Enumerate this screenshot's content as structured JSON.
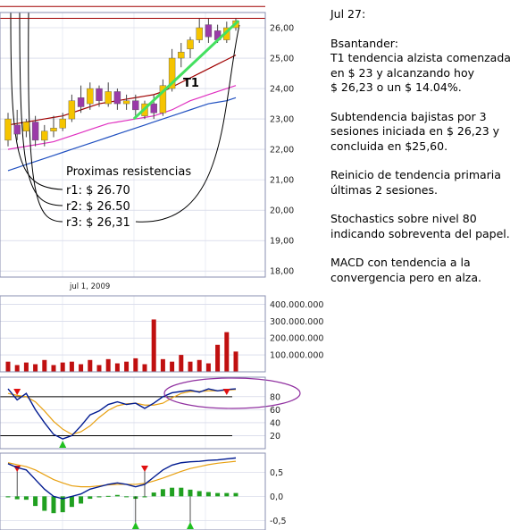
{
  "commentary": {
    "date": "Jul 27:",
    "p1": "Bsantander:\nT1 tendencia alzista comenzada en $ 23 y alcanzando hoy\n $ 26,23 o un $ 14.04%.",
    "p2": "Subtendencia bajistas por 3 sesiones iniciada en $ 26,23 y concluida en $25,60.",
    "p3": "Reinicio de tendencia primaria últimas 2 sesiones.",
    "p4": "Stochastics sobre nivel 80 indicando sobreventa del papel.",
    "p5": "MACD con tendencia a la convergencia pero en alza."
  },
  "annotations": {
    "resist_title": "Proximas resistencias",
    "r1": "r1: $ 26.70",
    "r2": "r2: $ 26.50",
    "r3": "r3: $ 26,31",
    "trend_label": "T1"
  },
  "colors": {
    "up_candle": "#f5c400",
    "down_candle": "#9a3aa8",
    "trend_line": "#44e060",
    "volume_bar": "#c01010",
    "ma_dark_red": "#a00000",
    "ma_magenta": "#e030c0",
    "ma_blue": "#2050c0",
    "stoch_k": "#001a90",
    "stoch_d": "#e8a010",
    "macd_line": "#001a90",
    "macd_signal": "#e8a010",
    "macd_hist": "#20a020",
    "marker_red": "#e01010",
    "marker_green": "#20c020",
    "ellipse": "#9030a0"
  },
  "chart_data": [
    {
      "type": "candlestick",
      "name": "price",
      "ylim": [
        17.8,
        26.5
      ],
      "yticks": [
        "26,00",
        "25,00",
        "24,00",
        "23,00",
        "22,00",
        "21,00",
        "20,00",
        "19,00",
        "18,00"
      ],
      "ytick_values": [
        26,
        25,
        24,
        23,
        22,
        21,
        20,
        19,
        18
      ],
      "xlabel_tick": "jul 1, 2009",
      "candles": [
        {
          "o": 22.3,
          "c": 23.0,
          "h": 23.2,
          "l": 22.1
        },
        {
          "o": 22.8,
          "c": 22.5,
          "h": 23.3,
          "l": 22.3
        },
        {
          "o": 22.6,
          "c": 22.9,
          "h": 23.0,
          "l": 22.4
        },
        {
          "o": 22.9,
          "c": 22.3,
          "h": 23.1,
          "l": 22.1
        },
        {
          "o": 22.3,
          "c": 22.6,
          "h": 22.8,
          "l": 22.1
        },
        {
          "o": 22.6,
          "c": 22.7,
          "h": 23.1,
          "l": 22.4
        },
        {
          "o": 22.7,
          "c": 23.0,
          "h": 23.2,
          "l": 22.6
        },
        {
          "o": 23.0,
          "c": 23.6,
          "h": 23.8,
          "l": 22.9
        },
        {
          "o": 23.7,
          "c": 23.4,
          "h": 24.1,
          "l": 23.2
        },
        {
          "o": 23.5,
          "c": 24.0,
          "h": 24.2,
          "l": 23.3
        },
        {
          "o": 24.0,
          "c": 23.6,
          "h": 24.1,
          "l": 23.4
        },
        {
          "o": 23.5,
          "c": 23.9,
          "h": 24.2,
          "l": 23.4
        },
        {
          "o": 23.9,
          "c": 23.5,
          "h": 24.0,
          "l": 23.3
        },
        {
          "o": 23.5,
          "c": 23.6,
          "h": 23.8,
          "l": 23.3
        },
        {
          "o": 23.6,
          "c": 23.3,
          "h": 23.8,
          "l": 23.1
        },
        {
          "o": 23.1,
          "c": 23.5,
          "h": 23.6,
          "l": 23.0
        },
        {
          "o": 23.5,
          "c": 23.2,
          "h": 23.8,
          "l": 23.0
        },
        {
          "o": 23.2,
          "c": 24.1,
          "h": 24.3,
          "l": 23.1
        },
        {
          "o": 24.0,
          "c": 25.0,
          "h": 25.3,
          "l": 23.9
        },
        {
          "o": 25.0,
          "c": 25.2,
          "h": 25.5,
          "l": 24.7
        },
        {
          "o": 25.3,
          "c": 25.6,
          "h": 25.7,
          "l": 25.0
        },
        {
          "o": 25.6,
          "c": 26.0,
          "h": 26.3,
          "l": 25.5
        },
        {
          "o": 26.1,
          "c": 25.7,
          "h": 26.3,
          "l": 25.5
        },
        {
          "o": 25.9,
          "c": 25.6,
          "h": 26.1,
          "l": 25.5
        },
        {
          "o": 25.6,
          "c": 26.0,
          "h": 26.2,
          "l": 25.5
        },
        {
          "o": 26.0,
          "c": 26.23,
          "h": 26.3,
          "l": 25.9
        }
      ],
      "resistance_lines": [
        26.31,
        26.5,
        26.7
      ],
      "trend_line": {
        "from_index": 14,
        "from_value": 23.0,
        "to_index": 25,
        "to_value": 26.23
      },
      "ma_dark_red": [
        22.8,
        22.85,
        22.9,
        22.95,
        23.0,
        23.05,
        23.1,
        23.2,
        23.3,
        23.4,
        23.5,
        23.55,
        23.6,
        23.65,
        23.7,
        23.75,
        23.8,
        23.9,
        24.05,
        24.2,
        24.35,
        24.5,
        24.65,
        24.8,
        24.95,
        25.1
      ],
      "ma_magenta": [
        22.0,
        22.05,
        22.1,
        22.15,
        22.2,
        22.25,
        22.35,
        22.45,
        22.55,
        22.65,
        22.75,
        22.85,
        22.9,
        22.95,
        23.0,
        23.05,
        23.1,
        23.2,
        23.3,
        23.45,
        23.6,
        23.7,
        23.8,
        23.9,
        24.0,
        24.1
      ],
      "ma_blue": [
        21.3,
        21.4,
        21.5,
        21.6,
        21.7,
        21.8,
        21.9,
        22.0,
        22.1,
        22.2,
        22.3,
        22.4,
        22.5,
        22.6,
        22.7,
        22.8,
        22.9,
        23.0,
        23.1,
        23.2,
        23.3,
        23.4,
        23.5,
        23.55,
        23.6,
        23.7
      ]
    },
    {
      "type": "bar",
      "name": "volume",
      "ylim": [
        0,
        450000000
      ],
      "yticks": [
        "400.000.000",
        "300.000.000",
        "200.000.000",
        "100.000.000"
      ],
      "ytick_values": [
        400000000,
        300000000,
        200000000,
        100000000
      ],
      "values": [
        60000000,
        40000000,
        55000000,
        45000000,
        70000000,
        40000000,
        55000000,
        60000000,
        45000000,
        70000000,
        40000000,
        75000000,
        50000000,
        60000000,
        80000000,
        45000000,
        310000000,
        75000000,
        60000000,
        100000000,
        60000000,
        70000000,
        50000000,
        160000000,
        235000000,
        120000000
      ]
    },
    {
      "type": "line",
      "name": "stochastics",
      "ylim": [
        0,
        110
      ],
      "yticks": [
        "80",
        "60",
        "40",
        "20"
      ],
      "ytick_values": [
        80,
        60,
        40,
        20
      ],
      "reference_lines": [
        80,
        20
      ],
      "k": [
        92,
        75,
        85,
        60,
        40,
        22,
        15,
        20,
        35,
        52,
        58,
        68,
        72,
        68,
        70,
        62,
        70,
        80,
        86,
        88,
        90,
        87,
        92,
        89,
        91,
        92
      ],
      "d": [
        85,
        82,
        80,
        72,
        58,
        42,
        30,
        22,
        26,
        35,
        48,
        59,
        66,
        69,
        70,
        67,
        67,
        70,
        78,
        85,
        88,
        88,
        89,
        89,
        90,
        91
      ],
      "sell_markers": [
        1,
        24
      ],
      "buy_markers": [
        6
      ]
    },
    {
      "type": "line",
      "name": "macd",
      "ylim": [
        -0.7,
        0.9
      ],
      "yticks": [
        "0,5",
        "0,0",
        "-0,5"
      ],
      "ytick_values": [
        0.5,
        0.0,
        -0.5
      ],
      "macd": [
        0.68,
        0.6,
        0.55,
        0.35,
        0.15,
        0.0,
        -0.05,
        0.0,
        0.05,
        0.15,
        0.2,
        0.25,
        0.28,
        0.25,
        0.2,
        0.25,
        0.4,
        0.55,
        0.65,
        0.7,
        0.72,
        0.73,
        0.75,
        0.76,
        0.78,
        0.8
      ],
      "signal": [
        0.7,
        0.66,
        0.62,
        0.55,
        0.45,
        0.35,
        0.28,
        0.22,
        0.2,
        0.2,
        0.22,
        0.24,
        0.25,
        0.25,
        0.25,
        0.27,
        0.32,
        0.38,
        0.45,
        0.52,
        0.58,
        0.62,
        0.66,
        0.69,
        0.71,
        0.73
      ],
      "histogram": [
        -0.02,
        -0.06,
        -0.07,
        -0.2,
        -0.3,
        -0.35,
        -0.33,
        -0.22,
        -0.15,
        -0.05,
        -0.02,
        0.01,
        0.03,
        0.0,
        -0.05,
        -0.02,
        0.08,
        0.15,
        0.18,
        0.18,
        0.14,
        0.11,
        0.09,
        0.07,
        0.07,
        0.07
      ],
      "sell_markers": [
        1,
        15
      ],
      "buy_markers": [
        14,
        20
      ]
    }
  ]
}
